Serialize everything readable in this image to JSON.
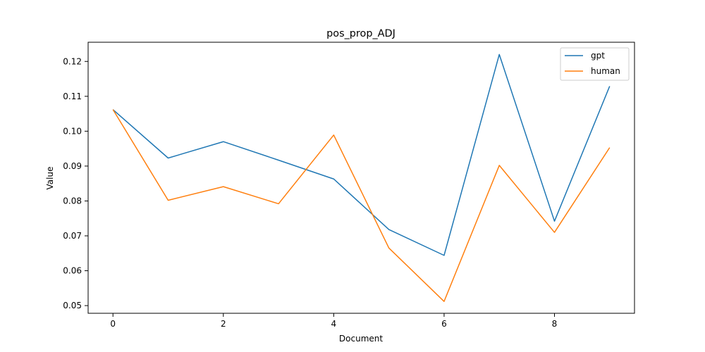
{
  "chart_data": {
    "type": "line",
    "title": "pos_prop_ADJ",
    "xlabel": "Document",
    "ylabel": "Value",
    "x": [
      0,
      1,
      2,
      3,
      4,
      5,
      6,
      7,
      8,
      9
    ],
    "xlim": [
      -0.45,
      9.45
    ],
    "ylim": [
      0.0478,
      0.1255
    ],
    "xticks": [
      0,
      2,
      4,
      6,
      8
    ],
    "yticks": [
      0.05,
      0.06,
      0.07,
      0.08,
      0.09,
      0.1,
      0.11,
      0.12
    ],
    "ytick_labels": [
      "0.05",
      "0.06",
      "0.07",
      "0.08",
      "0.09",
      "0.10",
      "0.11",
      "0.12"
    ],
    "grid": false,
    "legend_position": "top-right",
    "series": [
      {
        "name": "gpt",
        "color": "#1f77b4",
        "values": [
          0.1062,
          0.0923,
          0.097,
          0.0917,
          0.0863,
          0.0718,
          0.0644,
          0.122,
          0.0742,
          0.1129
        ]
      },
      {
        "name": "human",
        "color": "#ff7f0e",
        "values": [
          0.1062,
          0.0802,
          0.0841,
          0.0792,
          0.0989,
          0.0665,
          0.0512,
          0.0902,
          0.071,
          0.0953
        ]
      }
    ]
  }
}
